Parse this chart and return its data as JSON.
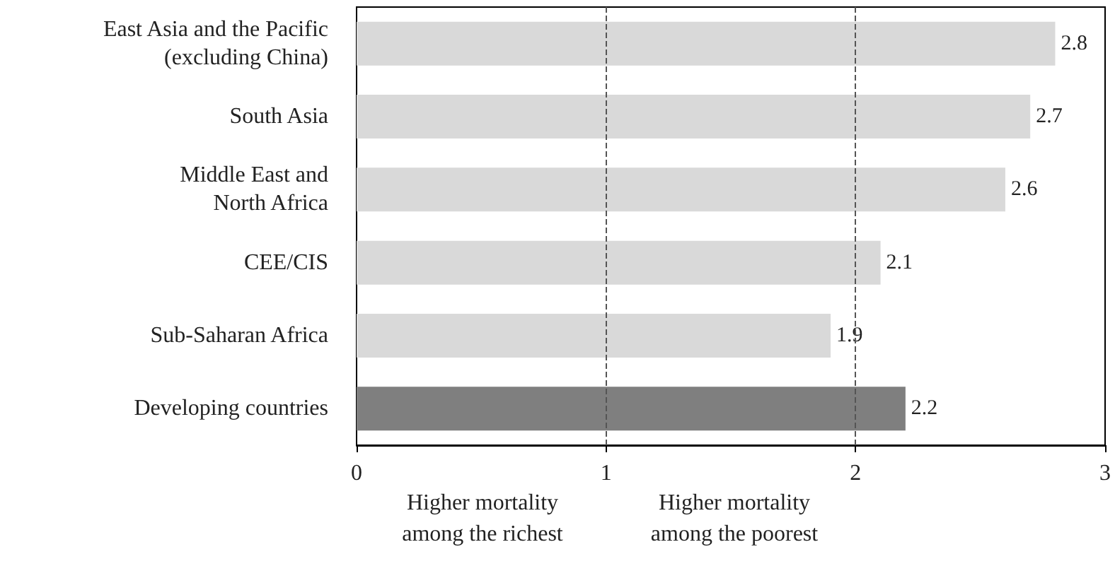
{
  "chart_data": {
    "type": "bar",
    "orientation": "horizontal",
    "categories": [
      "East Asia and the Pacific\n(excluding China)",
      "South Asia",
      "Middle East and\nNorth Africa",
      "CEE/CIS",
      "Sub-Saharan Africa",
      "Developing countries"
    ],
    "values": [
      2.8,
      2.7,
      2.6,
      2.1,
      1.9,
      2.2
    ],
    "colors": [
      "#d9d9d9",
      "#d9d9d9",
      "#d9d9d9",
      "#d9d9d9",
      "#d9d9d9",
      "#7f7f7f"
    ],
    "xlim": [
      0,
      3
    ],
    "xticks": [
      0,
      1,
      2,
      3
    ],
    "grid": false,
    "data_labels": true,
    "ref_lines": [
      {
        "axis": "x",
        "value": 1,
        "label": null,
        "line_style": "dashed",
        "color": "#555555"
      },
      {
        "axis": "x",
        "value": 2,
        "label": null,
        "line_style": "dashed",
        "color": "#555555"
      }
    ],
    "annotations": [
      "Higher mortality\namong the richest",
      "Higher mortality\namong the poorest"
    ]
  }
}
